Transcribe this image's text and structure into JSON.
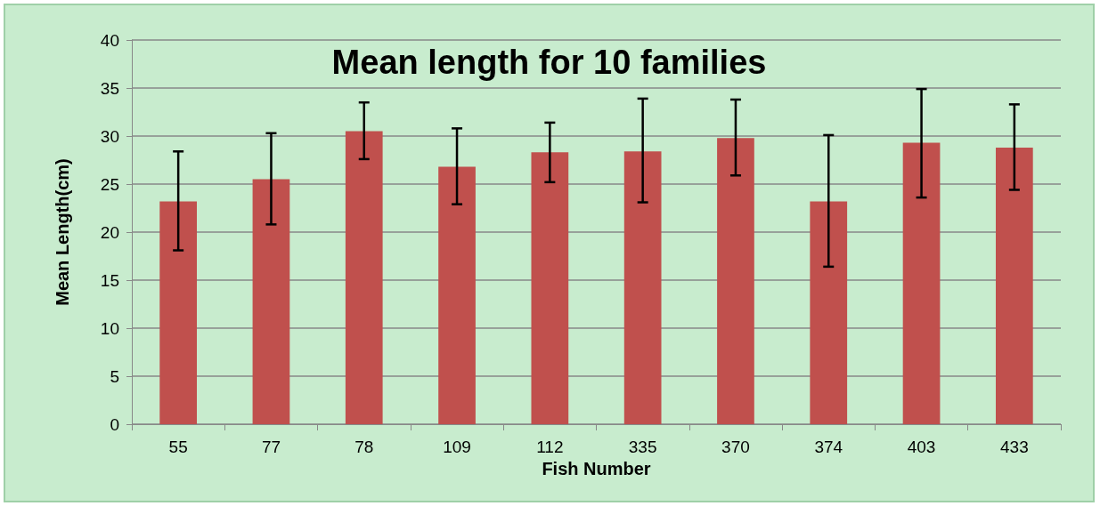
{
  "chart_data": {
    "type": "bar",
    "title": "Mean length for 10 families",
    "xlabel": "Fish Number",
    "ylabel": "Mean Length(cm)",
    "categories": [
      "55",
      "77",
      "78",
      "109",
      "112",
      "335",
      "370",
      "374",
      "403",
      "433"
    ],
    "values": [
      23.2,
      25.5,
      30.5,
      26.8,
      28.3,
      28.4,
      29.8,
      23.2,
      29.3,
      28.8
    ],
    "errors": [
      [
        18.1,
        28.4
      ],
      [
        20.8,
        30.3
      ],
      [
        27.6,
        33.5
      ],
      [
        22.9,
        30.8
      ],
      [
        25.2,
        31.4
      ],
      [
        23.1,
        33.9
      ],
      [
        25.9,
        33.8
      ],
      [
        16.4,
        30.1
      ],
      [
        23.6,
        34.9
      ],
      [
        24.4,
        33.3
      ]
    ],
    "color": "#c0504d",
    "ylim": [
      0,
      40
    ],
    "yticks": [
      0,
      5,
      10,
      15,
      20,
      25,
      30,
      35,
      40
    ],
    "grid": "y"
  }
}
